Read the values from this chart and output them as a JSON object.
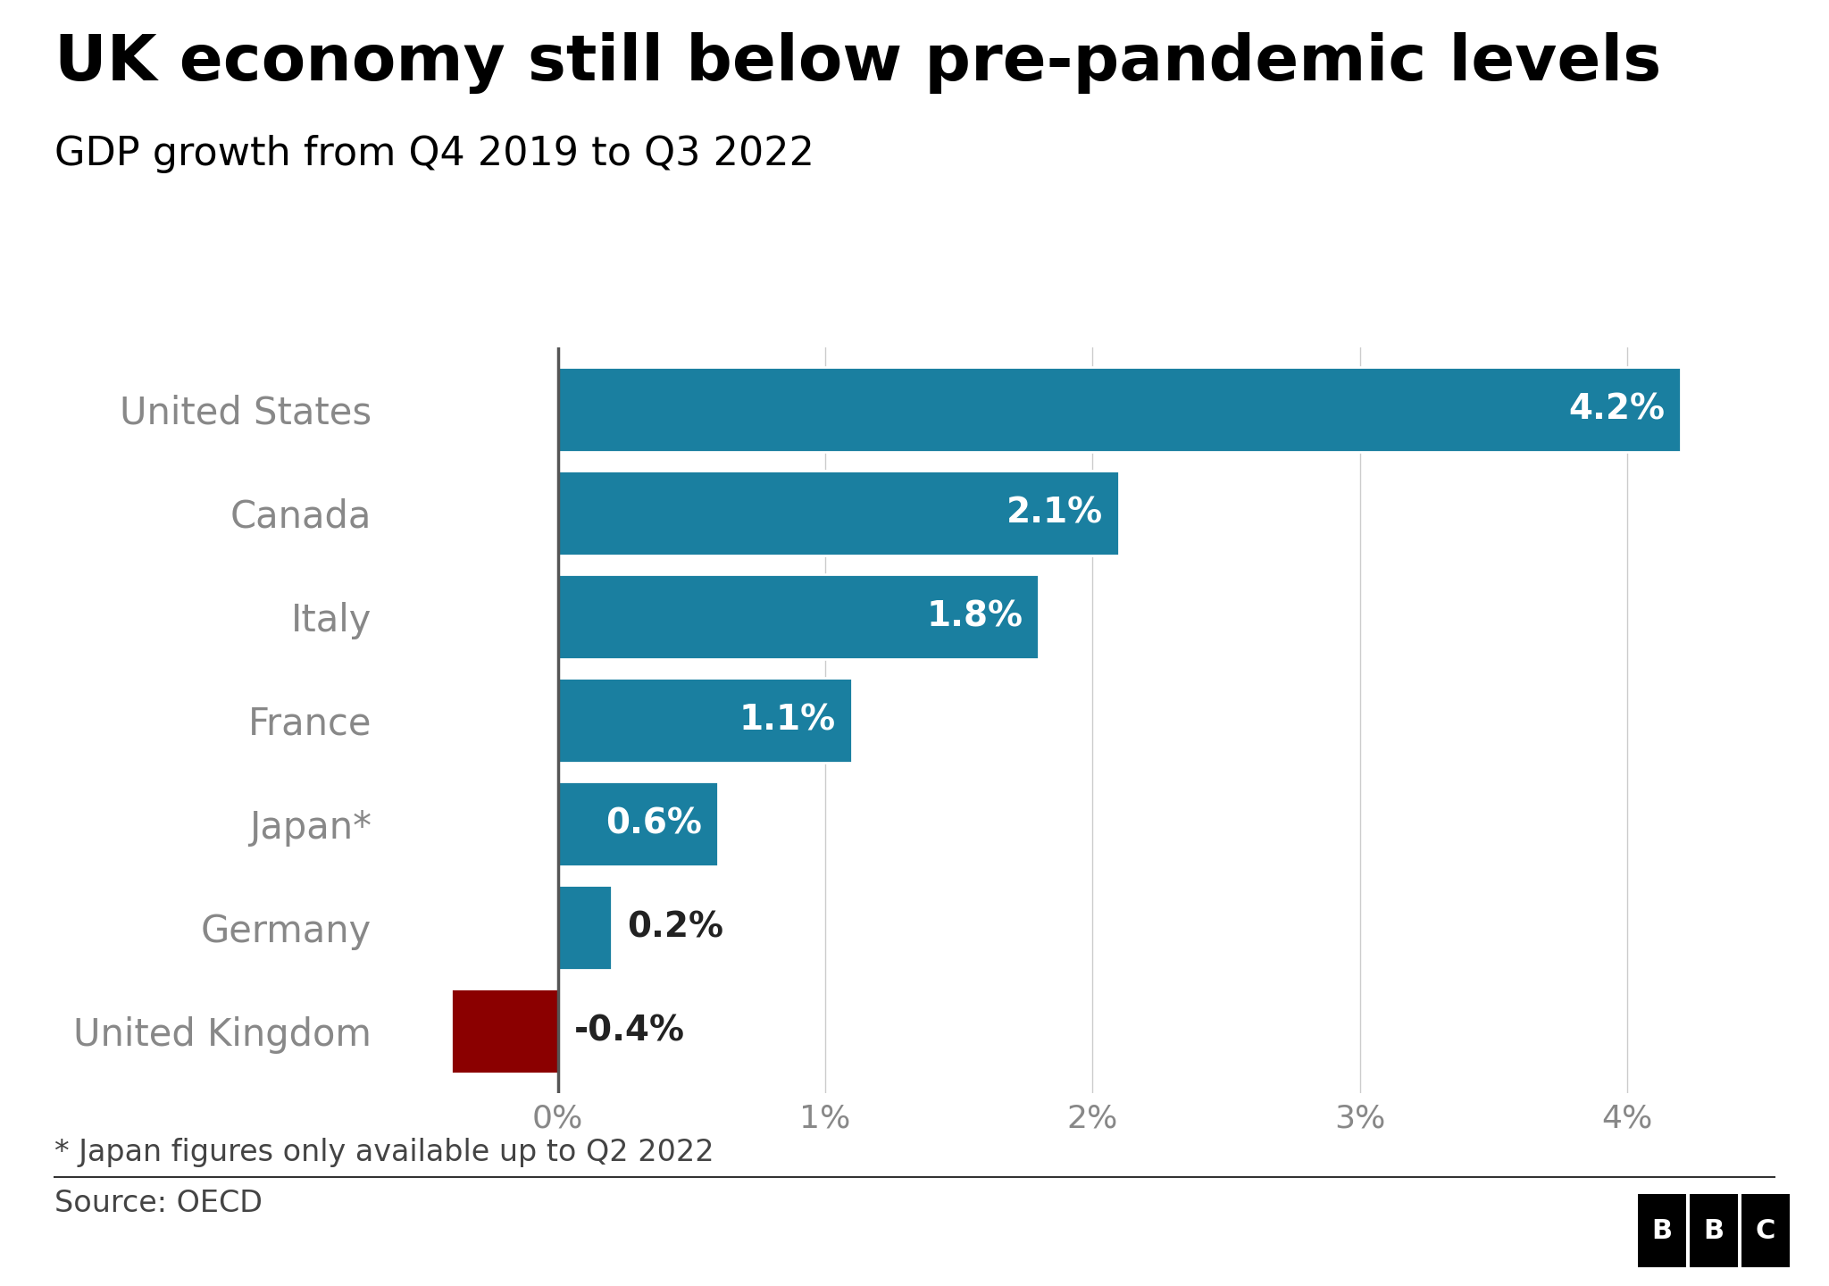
{
  "title": "UK economy still below pre-pandemic levels",
  "subtitle": "GDP growth from Q4 2019 to Q3 2022",
  "countries": [
    "United States",
    "Canada",
    "Italy",
    "France",
    "Japan*",
    "Germany",
    "United Kingdom"
  ],
  "values": [
    4.2,
    2.1,
    1.8,
    1.1,
    0.6,
    0.2,
    -0.4
  ],
  "labels": [
    "4.2%",
    "2.1%",
    "1.8%",
    "1.1%",
    "0.6%",
    "0.2%",
    "-0.4%"
  ],
  "bar_colors": [
    "#1a7fa0",
    "#1a7fa0",
    "#1a7fa0",
    "#1a7fa0",
    "#1a7fa0",
    "#1a7fa0",
    "#8b0000"
  ],
  "background_color": "#ffffff",
  "title_fontsize": 52,
  "subtitle_fontsize": 32,
  "label_fontsize": 28,
  "tick_fontsize": 26,
  "country_fontsize": 30,
  "footnote": "* Japan figures only available up to Q2 2022",
  "source": "Source: OECD",
  "xlim": [
    -0.65,
    4.55
  ],
  "xticks": [
    0,
    1,
    2,
    3,
    4
  ],
  "xtick_labels": [
    "0%",
    "1%",
    "2%",
    "3%",
    "4%"
  ]
}
